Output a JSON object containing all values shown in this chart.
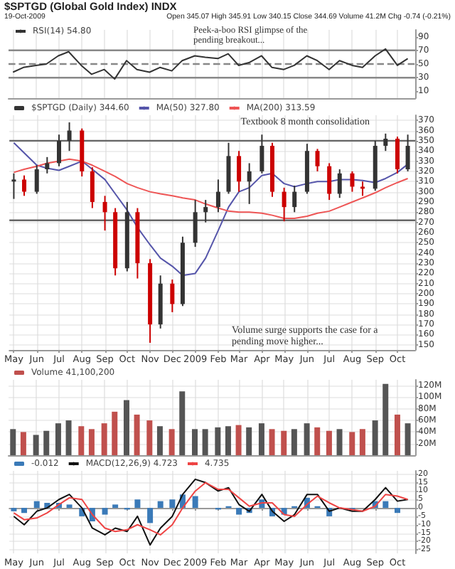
{
  "chart_data": [
    {
      "type": "line",
      "title": "$SPTGD (Global Gold Index) INDX",
      "subtitle": "19-Oct-2009",
      "annotations": [
        "Open 345.07 High 345.91 Low 340.15 Close 344.69 Volume 41.2M Chg -0.74 (-0.21%)",
        "Peek-a-boo RSI glimpse of the pending breakout..."
      ],
      "x": [
        "2008-05-01",
        "2008-05-15",
        "2008-06-01",
        "2008-06-15",
        "2008-07-01",
        "2008-07-15",
        "2008-08-01",
        "2008-08-15",
        "2008-09-01",
        "2008-09-15",
        "2008-10-01",
        "2008-10-15",
        "2008-11-01",
        "2008-11-15",
        "2008-12-01",
        "2008-12-15",
        "2009-01-01",
        "2009-01-15",
        "2009-02-01",
        "2009-02-15",
        "2009-03-01",
        "2009-03-15",
        "2009-04-01",
        "2009-04-15",
        "2009-05-01",
        "2009-05-15",
        "2009-06-01",
        "2009-06-15",
        "2009-07-01",
        "2009-07-15",
        "2009-08-01",
        "2009-08-15",
        "2009-09-01",
        "2009-09-15",
        "2009-10-01",
        "2009-10-15"
      ],
      "series": [
        {
          "name": "RSI(14) 54.80",
          "color": "#333333",
          "values": [
            38,
            45,
            48,
            50,
            62,
            68,
            48,
            35,
            42,
            28,
            55,
            42,
            38,
            45,
            40,
            55,
            62,
            60,
            58,
            65,
            48,
            52,
            62,
            45,
            42,
            48,
            62,
            55,
            42,
            55,
            48,
            45,
            62,
            72,
            48,
            58
          ]
        }
      ],
      "xlim": [
        "2008-04-25",
        "2009-10-25"
      ],
      "xticks": [
        {
          "value": "2008-05-01",
          "label": "May"
        },
        {
          "value": "2008-06-01",
          "label": "Jun"
        },
        {
          "value": "2008-07-01",
          "label": "Jul"
        },
        {
          "value": "2008-08-01",
          "label": "Aug"
        },
        {
          "value": "2008-09-01",
          "label": "Sep"
        },
        {
          "value": "2008-10-01",
          "label": "Oct"
        },
        {
          "value": "2008-11-01",
          "label": "Nov"
        },
        {
          "value": "2008-12-01",
          "label": "Dec"
        },
        {
          "value": "2009-01-01",
          "label": "2009"
        },
        {
          "value": "2009-02-01",
          "label": "Feb"
        },
        {
          "value": "2009-03-01",
          "label": "Mar"
        },
        {
          "value": "2009-04-01",
          "label": "Apr"
        },
        {
          "value": "2009-05-01",
          "label": "May"
        },
        {
          "value": "2009-06-01",
          "label": "Jun"
        },
        {
          "value": "2009-07-01",
          "label": "Jul"
        },
        {
          "value": "2009-08-01",
          "label": "Aug"
        },
        {
          "value": "2009-09-01",
          "label": "Sep"
        },
        {
          "value": "2009-10-01",
          "label": "Oct"
        }
      ],
      "ylim": [
        0,
        100
      ],
      "yticks": [
        10,
        30,
        50,
        70,
        90
      ],
      "ref_lines": [
        {
          "axis": "y",
          "value": 70,
          "color": "#888888",
          "line_style": "solid"
        },
        {
          "axis": "y",
          "value": 50,
          "color": "#888888",
          "line_style": "dashed"
        },
        {
          "axis": "y",
          "value": 30,
          "color": "#888888",
          "line_style": "solid"
        }
      ],
      "grid": "x",
      "legend": "top left",
      "tick_labels": "y",
      "marker": "none"
    },
    {
      "type": "candlestick",
      "annotations": [
        "Textbook 8 month consolidation",
        "Volume surge supports the case for a pending move higher..."
      ],
      "x": [
        "2008-05-01",
        "2008-05-15",
        "2008-06-01",
        "2008-06-15",
        "2008-07-01",
        "2008-07-15",
        "2008-08-01",
        "2008-08-15",
        "2008-09-01",
        "2008-09-15",
        "2008-10-01",
        "2008-10-15",
        "2008-11-01",
        "2008-11-15",
        "2008-12-01",
        "2008-12-15",
        "2009-01-01",
        "2009-01-15",
        "2009-02-01",
        "2009-02-15",
        "2009-03-01",
        "2009-03-15",
        "2009-04-01",
        "2009-04-15",
        "2009-05-01",
        "2009-05-15",
        "2009-06-01",
        "2009-06-15",
        "2009-07-01",
        "2009-07-15",
        "2009-08-01",
        "2009-08-15",
        "2009-09-01",
        "2009-09-15",
        "2009-10-01",
        "2009-10-15"
      ],
      "series": [
        {
          "name": "$SPTGD (Daily) 344.60",
          "color": "#333333",
          "ohlc": [
            [
              310,
              318,
              293,
              312
            ],
            [
              312,
              316,
              296,
              300
            ],
            [
              300,
              326,
              298,
              322
            ],
            [
              322,
              334,
              318,
              328
            ],
            [
              328,
              356,
              325,
              350
            ],
            [
              350,
              368,
              340,
              360
            ],
            [
              360,
              362,
              315,
              320
            ],
            [
              320,
              324,
              284,
              290
            ],
            [
              290,
              296,
              262,
              280
            ],
            [
              280,
              284,
              218,
              225
            ],
            [
              225,
              290,
              222,
              280
            ],
            [
              280,
              284,
              215,
              230
            ],
            [
              230,
              234,
              152,
              170
            ],
            [
              170,
              218,
              166,
              210
            ],
            [
              210,
              214,
              182,
              190
            ],
            [
              190,
              256,
              188,
              250
            ],
            [
              250,
              292,
              246,
              280
            ],
            [
              280,
              292,
              270,
              285
            ],
            [
              285,
              312,
              280,
              300
            ],
            [
              300,
              348,
              298,
              335
            ],
            [
              335,
              340,
              300,
              310
            ],
            [
              310,
              328,
              288,
              320
            ],
            [
              320,
              356,
              318,
              345
            ],
            [
              345,
              348,
              295,
              300
            ],
            [
              300,
              304,
              271,
              285
            ],
            [
              285,
              306,
              280,
              300
            ],
            [
              300,
              347,
              298,
              340
            ],
            [
              340,
              342,
              320,
              325
            ],
            [
              325,
              328,
              292,
              298
            ],
            [
              298,
              322,
              294,
              318
            ],
            [
              318,
              320,
              300,
              305
            ],
            [
              305,
              310,
              296,
              303
            ],
            [
              303,
              350,
              301,
              345
            ],
            [
              345,
              357,
              340,
              352
            ],
            [
              352,
              354,
              318,
              322
            ],
            [
              322,
              356,
              320,
              345
            ]
          ],
          "colors": [
            "#333333",
            "#cc0000",
            "#333333",
            "#333333",
            "#333333",
            "#333333",
            "#cc0000",
            "#cc0000",
            "#cc0000",
            "#cc0000",
            "#333333",
            "#cc0000",
            "#cc0000",
            "#333333",
            "#cc0000",
            "#333333",
            "#333333",
            "#333333",
            "#333333",
            "#333333",
            "#cc0000",
            "#333333",
            "#333333",
            "#cc0000",
            "#cc0000",
            "#333333",
            "#333333",
            "#cc0000",
            "#cc0000",
            "#333333",
            "#cc0000",
            "#cc0000",
            "#333333",
            "#333333",
            "#cc0000",
            "#333333"
          ]
        },
        {
          "name": "MA(50) 327.80",
          "type": "line",
          "color": "#5555aa",
          "values": [
            348,
            338,
            326,
            323,
            321,
            325,
            330,
            322,
            312,
            298,
            282,
            265,
            248,
            235,
            227,
            218,
            220,
            235,
            262,
            285,
            300,
            304,
            316,
            318,
            308,
            305,
            308,
            310,
            310,
            312,
            312,
            311,
            309,
            313,
            319,
            327
          ]
        },
        {
          "name": "MA(200) 313.59",
          "type": "line",
          "color": "#ee5555",
          "values": [
            319,
            322,
            325,
            328,
            330,
            332,
            330,
            326,
            320,
            315,
            308,
            304,
            300,
            298,
            296,
            294,
            292,
            288,
            284,
            281,
            280,
            280,
            279,
            277,
            274,
            274,
            276,
            279,
            281,
            285,
            290,
            294,
            299,
            304,
            309,
            313
          ]
        }
      ],
      "xlim": [
        "2008-04-25",
        "2009-10-25"
      ],
      "xticks": [
        {
          "value": "2008-05-01",
          "label": "May"
        },
        {
          "value": "2008-06-01",
          "label": "Jun"
        },
        {
          "value": "2008-07-01",
          "label": "Jul"
        },
        {
          "value": "2008-08-01",
          "label": "Aug"
        },
        {
          "value": "2008-09-01",
          "label": "Sep"
        },
        {
          "value": "2008-10-01",
          "label": "Oct"
        },
        {
          "value": "2008-11-01",
          "label": "Nov"
        },
        {
          "value": "2008-12-01",
          "label": "Dec"
        },
        {
          "value": "2009-01-01",
          "label": "2009"
        },
        {
          "value": "2009-02-01",
          "label": "Feb"
        },
        {
          "value": "2009-03-01",
          "label": "Mar"
        },
        {
          "value": "2009-04-01",
          "label": "Apr"
        },
        {
          "value": "2009-05-01",
          "label": "May"
        },
        {
          "value": "2009-06-01",
          "label": "Jun"
        },
        {
          "value": "2009-07-01",
          "label": "Jul"
        },
        {
          "value": "2009-08-01",
          "label": "Aug"
        },
        {
          "value": "2009-09-01",
          "label": "Sep"
        },
        {
          "value": "2009-10-01",
          "label": "Oct"
        }
      ],
      "ylim": [
        145,
        375
      ],
      "yticks": [
        150,
        160,
        170,
        180,
        190,
        200,
        210,
        220,
        230,
        240,
        250,
        260,
        270,
        280,
        290,
        300,
        310,
        320,
        330,
        340,
        350,
        360,
        370
      ],
      "ref_lines": [
        {
          "axis": "y",
          "value": 350,
          "color": "#666666",
          "line_style": "solid"
        },
        {
          "axis": "y",
          "value": 272,
          "color": "#666666",
          "line_style": "solid"
        }
      ],
      "grid": true,
      "legend": "top left",
      "marker": "none"
    },
    {
      "type": "bar",
      "x": [
        "2008-05-01",
        "2008-05-15",
        "2008-06-01",
        "2008-06-15",
        "2008-07-01",
        "2008-07-15",
        "2008-08-01",
        "2008-08-15",
        "2008-09-01",
        "2008-09-15",
        "2008-10-01",
        "2008-10-15",
        "2008-11-01",
        "2008-11-15",
        "2008-12-01",
        "2008-12-15",
        "2009-01-01",
        "2009-01-15",
        "2009-02-01",
        "2009-02-15",
        "2009-03-01",
        "2009-03-15",
        "2009-04-01",
        "2009-04-15",
        "2009-05-01",
        "2009-05-15",
        "2009-06-01",
        "2009-06-15",
        "2009-07-01",
        "2009-07-15",
        "2009-08-01",
        "2009-08-15",
        "2009-09-01",
        "2009-09-15",
        "2009-10-01",
        "2009-10-15"
      ],
      "series": [
        {
          "name": "Volume 41,100,200",
          "color": "#c0504d",
          "values": [
            45,
            40,
            35,
            42,
            55,
            60,
            50,
            45,
            55,
            75,
            95,
            70,
            60,
            50,
            45,
            110,
            45,
            45,
            48,
            50,
            52,
            48,
            55,
            45,
            42,
            45,
            55,
            48,
            42,
            45,
            40,
            45,
            60,
            123,
            70,
            55
          ],
          "colors": [
            "#555555",
            "#c0504d",
            "#555555",
            "#555555",
            "#555555",
            "#555555",
            "#c0504d",
            "#c0504d",
            "#c0504d",
            "#c0504d",
            "#555555",
            "#c0504d",
            "#c0504d",
            "#555555",
            "#c0504d",
            "#555555",
            "#555555",
            "#555555",
            "#555555",
            "#555555",
            "#c0504d",
            "#555555",
            "#555555",
            "#c0504d",
            "#c0504d",
            "#555555",
            "#555555",
            "#c0504d",
            "#c0504d",
            "#555555",
            "#c0504d",
            "#c0504d",
            "#555555",
            "#555555",
            "#c0504d",
            "#555555"
          ]
        }
      ],
      "xlim": [
        "2008-04-25",
        "2009-10-25"
      ],
      "xticks": [
        {
          "value": "2008-05-01",
          "label": "May"
        },
        {
          "value": "2008-06-01",
          "label": "Jun"
        },
        {
          "value": "2008-07-01",
          "label": "Jul"
        },
        {
          "value": "2008-08-01",
          "label": "Aug"
        },
        {
          "value": "2008-09-01",
          "label": "Sep"
        },
        {
          "value": "2008-10-01",
          "label": "Oct"
        },
        {
          "value": "2008-11-01",
          "label": "Nov"
        },
        {
          "value": "2008-12-01",
          "label": "Dec"
        },
        {
          "value": "2009-01-01",
          "label": "2009"
        },
        {
          "value": "2009-02-01",
          "label": "Feb"
        },
        {
          "value": "2009-03-01",
          "label": "Mar"
        },
        {
          "value": "2009-04-01",
          "label": "Apr"
        },
        {
          "value": "2009-05-01",
          "label": "May"
        },
        {
          "value": "2009-06-01",
          "label": "Jun"
        },
        {
          "value": "2009-07-01",
          "label": "Jul"
        },
        {
          "value": "2009-08-01",
          "label": "Aug"
        },
        {
          "value": "2009-09-01",
          "label": "Sep"
        },
        {
          "value": "2009-10-01",
          "label": "Oct"
        }
      ],
      "ylim": [
        0,
        130
      ],
      "yticks": [
        {
          "value": 20,
          "label": "20M"
        },
        {
          "value": 40,
          "label": "40M"
        },
        {
          "value": 60,
          "label": "60M"
        },
        {
          "value": 80,
          "label": "80M"
        },
        {
          "value": 100,
          "label": "100M"
        },
        {
          "value": 120,
          "label": "120M"
        }
      ],
      "grid": true,
      "legend": "top left",
      "tick_labels": "y"
    },
    {
      "type": "line",
      "x": [
        "2008-05-01",
        "2008-05-15",
        "2008-06-01",
        "2008-06-15",
        "2008-07-01",
        "2008-07-15",
        "2008-08-01",
        "2008-08-15",
        "2008-09-01",
        "2008-09-15",
        "2008-10-01",
        "2008-10-15",
        "2008-11-01",
        "2008-11-15",
        "2008-12-01",
        "2008-12-15",
        "2009-01-01",
        "2009-01-15",
        "2009-02-01",
        "2009-02-15",
        "2009-03-01",
        "2009-03-15",
        "2009-04-01",
        "2009-04-15",
        "2009-05-01",
        "2009-05-15",
        "2009-06-01",
        "2009-06-15",
        "2009-07-01",
        "2009-07-15",
        "2009-08-01",
        "2009-08-15",
        "2009-09-01",
        "2009-09-15",
        "2009-10-01",
        "2009-10-15"
      ],
      "series": [
        {
          "name": "-0.012",
          "type": "bar",
          "color": "#3a7ab8",
          "values": [
            -2,
            -3,
            4,
            3,
            3,
            2,
            -5,
            -8,
            -4,
            2,
            -1,
            5,
            -9,
            4,
            5,
            8,
            7,
            0,
            -1,
            1,
            -4,
            -3,
            5,
            -5,
            -4,
            1,
            6,
            1,
            -5,
            0,
            -1,
            0,
            4,
            4,
            -3,
            0
          ]
        },
        {
          "name": "MACD(12,26,9) 4.723",
          "color": "#111111",
          "values": [
            -5,
            -10,
            -2,
            0,
            5,
            8,
            0,
            -12,
            -16,
            -12,
            -14,
            -5,
            -22,
            -12,
            -5,
            8,
            17,
            15,
            10,
            12,
            2,
            -2,
            8,
            -2,
            -8,
            -4,
            8,
            8,
            -2,
            0,
            -2,
            -2,
            5,
            12,
            4,
            5
          ]
        },
        {
          "name": "4.735",
          "color": "#ee4444",
          "values": [
            -3,
            -7,
            -6,
            -3,
            2,
            6,
            5,
            -4,
            -12,
            -14,
            -13,
            -10,
            -13,
            -16,
            -10,
            0,
            10,
            15,
            11,
            11,
            6,
            1,
            3,
            3,
            -4,
            -5,
            2,
            7,
            3,
            0,
            -1,
            -2,
            1,
            8,
            7,
            5
          ]
        }
      ],
      "xlim": [
        "2008-04-25",
        "2009-10-25"
      ],
      "xticks": [
        {
          "value": "2008-05-01",
          "label": "May"
        },
        {
          "value": "2008-06-01",
          "label": "Jun"
        },
        {
          "value": "2008-07-01",
          "label": "Jul"
        },
        {
          "value": "2008-08-01",
          "label": "Aug"
        },
        {
          "value": "2008-09-01",
          "label": "Sep"
        },
        {
          "value": "2008-10-01",
          "label": "Oct"
        },
        {
          "value": "2008-11-01",
          "label": "Nov"
        },
        {
          "value": "2008-12-01",
          "label": "Dec"
        },
        {
          "value": "2009-01-01",
          "label": "2009"
        },
        {
          "value": "2009-02-01",
          "label": "Feb"
        },
        {
          "value": "2009-03-01",
          "label": "Mar"
        },
        {
          "value": "2009-04-01",
          "label": "Apr"
        },
        {
          "value": "2009-05-01",
          "label": "May"
        },
        {
          "value": "2009-06-01",
          "label": "Jun"
        },
        {
          "value": "2009-07-01",
          "label": "Jul"
        },
        {
          "value": "2009-08-01",
          "label": "Aug"
        },
        {
          "value": "2009-09-01",
          "label": "Sep"
        },
        {
          "value": "2009-10-01",
          "label": "Oct"
        }
      ],
      "ylim": [
        -27,
        22
      ],
      "yticks": [
        -25,
        -20,
        -15,
        -10,
        -5,
        0,
        5,
        10,
        15,
        20
      ],
      "grid": true,
      "legend": "top left",
      "marker": "none"
    }
  ]
}
